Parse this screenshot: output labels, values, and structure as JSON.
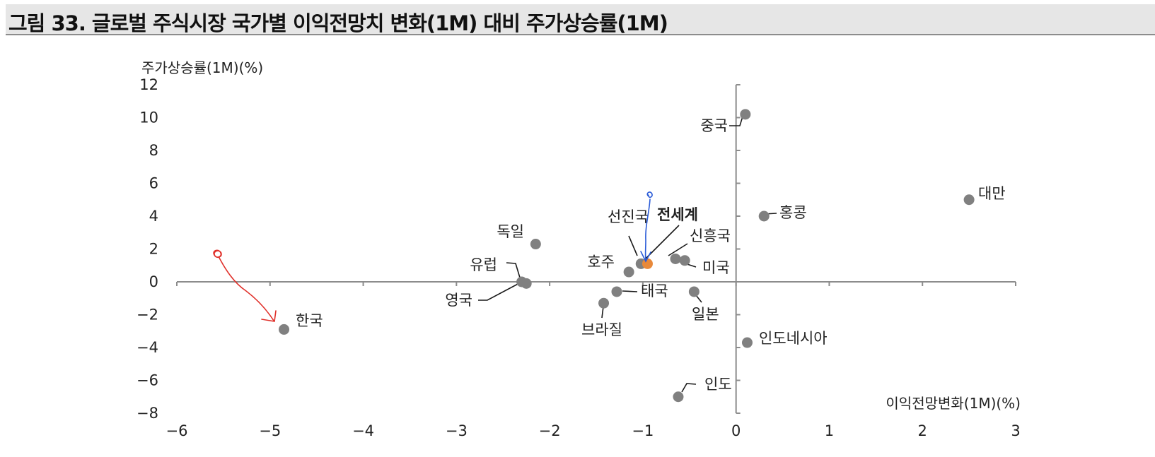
{
  "title": "그림 33. 글로벌 주식시장 국가별 이익전망치 변화(1M) 대비 주가상승률(1M)",
  "chart_data": {
    "type": "scatter",
    "xlabel": "이익전망변화(1M)(%)",
    "ylabel": "주가상승률(1M)(%)",
    "xlim": [
      -6,
      3
    ],
    "ylim": [
      -8,
      12
    ],
    "x_ticks": [
      "−6",
      "−5",
      "−4",
      "−3",
      "−2",
      "−1",
      "0",
      "1",
      "2",
      "3"
    ],
    "y_ticks": [
      "12",
      "10",
      "8",
      "6",
      "4",
      "2",
      "0",
      "−2",
      "−4",
      "−6",
      "−8"
    ],
    "grid": false,
    "points": [
      {
        "label": "중국",
        "x": 0.1,
        "y": 10.2,
        "color": "#808080"
      },
      {
        "label": "대만",
        "x": 2.5,
        "y": 5.0,
        "color": "#808080"
      },
      {
        "label": "홍콩",
        "x": 0.3,
        "y": 4.0,
        "color": "#808080"
      },
      {
        "label": "독일",
        "x": -2.15,
        "y": 2.3,
        "color": "#808080"
      },
      {
        "label": "선진국",
        "x": -1.02,
        "y": 1.1,
        "color": "#808080"
      },
      {
        "label": "전세계",
        "x": -0.95,
        "y": 1.1,
        "color": "#e8893a",
        "bold": true
      },
      {
        "label": "신흥국",
        "x": -0.65,
        "y": 1.4,
        "color": "#808080"
      },
      {
        "label": "미국",
        "x": -0.55,
        "y": 1.3,
        "color": "#808080"
      },
      {
        "label": "호주",
        "x": -1.15,
        "y": 0.6,
        "color": "#808080"
      },
      {
        "label": "유럽",
        "x": -2.3,
        "y": 0.0,
        "color": "#808080"
      },
      {
        "label": "영국",
        "x": -2.25,
        "y": -0.1,
        "color": "#808080"
      },
      {
        "label": "태국",
        "x": -1.28,
        "y": -0.6,
        "color": "#808080"
      },
      {
        "label": "일본",
        "x": -0.45,
        "y": -0.6,
        "color": "#808080"
      },
      {
        "label": "브라질",
        "x": -1.42,
        "y": -1.3,
        "color": "#808080"
      },
      {
        "label": "한국",
        "x": -4.85,
        "y": -2.9,
        "color": "#808080"
      },
      {
        "label": "인도네시아",
        "x": 0.12,
        "y": -3.7,
        "color": "#808080"
      },
      {
        "label": "인도",
        "x": -0.62,
        "y": -7.0,
        "color": "#808080"
      }
    ]
  }
}
